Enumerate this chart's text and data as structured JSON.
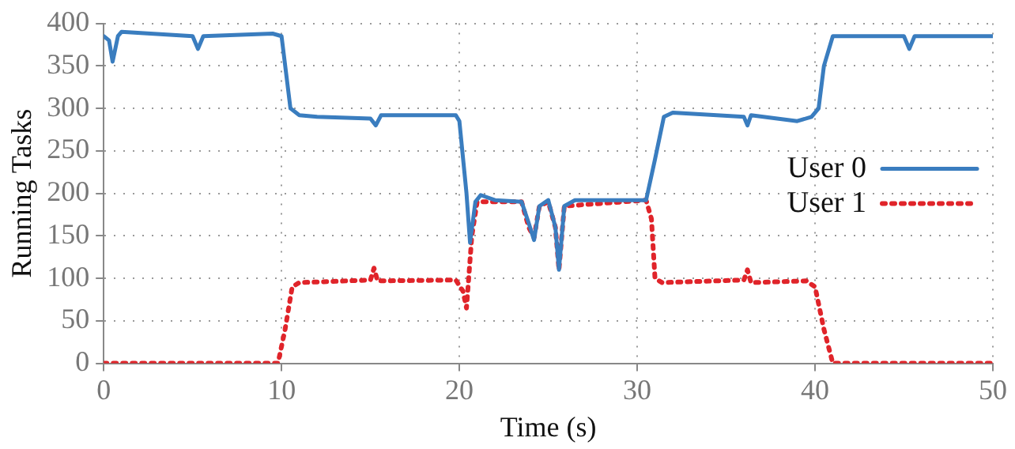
{
  "chart_data": {
    "type": "line",
    "xlabel": "Time (s)",
    "ylabel": "Running Tasks",
    "xlim": [
      0,
      50
    ],
    "xticks": [
      0,
      10,
      20,
      30,
      40,
      50
    ],
    "ylim": [
      0,
      400
    ],
    "yticks": [
      0,
      50,
      100,
      150,
      200,
      250,
      300,
      350,
      400
    ],
    "grid": true,
    "legend": "right",
    "marker": "none",
    "series": [
      {
        "name": "User 0",
        "color": "#3a7dbf",
        "line_style": "solid",
        "x": [
          0,
          0.3,
          0.5,
          0.8,
          1,
          5,
          5.3,
          5.6,
          9.5,
          10,
          10.5,
          11,
          12,
          15,
          15.3,
          15.6,
          19.8,
          20,
          20.4,
          20.6,
          20.9,
          21.2,
          22,
          23.5,
          23.9,
          24.2,
          24.5,
          25,
          25.4,
          25.6,
          25.9,
          26.5,
          30.5,
          31,
          31.5,
          32,
          36,
          36.2,
          36.4,
          39,
          39.8,
          40.2,
          40.5,
          41,
          45,
          45.3,
          45.6,
          50
        ],
        "values": [
          385,
          380,
          355,
          385,
          390,
          385,
          370,
          385,
          388,
          385,
          300,
          292,
          290,
          288,
          280,
          292,
          292,
          285,
          200,
          142,
          190,
          198,
          192,
          190,
          165,
          145,
          185,
          192,
          160,
          110,
          185,
          192,
          192,
          240,
          290,
          295,
          290,
          280,
          292,
          285,
          290,
          300,
          350,
          385,
          385,
          370,
          385,
          385
        ]
      },
      {
        "name": "User 1",
        "color": "#e0242a",
        "line_style": "dotted",
        "x": [
          0,
          9.8,
          10.2,
          10.6,
          11,
          15,
          15.2,
          15.4,
          19.8,
          20.2,
          20.4,
          20.7,
          21,
          23.5,
          23.9,
          24.2,
          24.5,
          25,
          25.4,
          25.6,
          25.9,
          30.5,
          30.8,
          31,
          31.4,
          36,
          36.2,
          36.4,
          39.5,
          40,
          40.5,
          41,
          50
        ],
        "values": [
          0,
          0,
          40,
          90,
          95,
          98,
          112,
          97,
          98,
          85,
          65,
          150,
          190,
          190,
          160,
          148,
          185,
          190,
          160,
          110,
          185,
          192,
          170,
          100,
          95,
          98,
          110,
          95,
          97,
          90,
          40,
          0,
          0
        ]
      }
    ]
  }
}
